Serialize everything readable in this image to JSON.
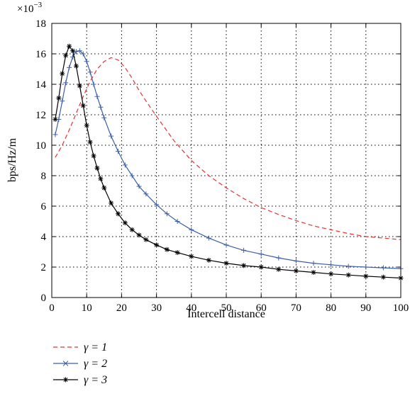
{
  "chart_data": {
    "type": "line",
    "xlabel": "Intercell distance",
    "ylabel": "bps/Hz/m",
    "y_multiplier_label": "×10",
    "y_multiplier_exponent": "−3",
    "xlim": [
      0,
      100
    ],
    "ylim": [
      0,
      18
    ],
    "x_ticks": [
      "0",
      "10",
      "20",
      "30",
      "40",
      "50",
      "60",
      "70",
      "80",
      "90",
      "100"
    ],
    "y_ticks": [
      "0",
      "2",
      "4",
      "6",
      "8",
      "10",
      "12",
      "14",
      "16",
      "18"
    ],
    "grid": true,
    "legend_position": "below",
    "series": [
      {
        "name": "γ = 1",
        "color": "#e8312f",
        "style": "dashed",
        "marker": "none",
        "x": [
          1,
          3,
          5,
          7,
          9,
          11,
          13,
          15,
          17,
          19,
          21,
          23,
          25,
          27,
          30,
          35,
          40,
          45,
          50,
          55,
          60,
          65,
          70,
          75,
          80,
          85,
          90,
          95,
          100
        ],
        "y": [
          9.2,
          10.0,
          11.0,
          12.1,
          13.2,
          14.2,
          15.0,
          15.5,
          15.75,
          15.6,
          15.1,
          14.4,
          13.6,
          12.9,
          11.9,
          10.3,
          9.0,
          8.0,
          7.2,
          6.5,
          5.9,
          5.45,
          5.05,
          4.7,
          4.45,
          4.2,
          4.0,
          3.9,
          3.8
        ]
      },
      {
        "name": "γ = 2",
        "color": "#3a5fa8",
        "style": "solid",
        "marker": "plus",
        "x": [
          1,
          2,
          3,
          4,
          5,
          6,
          7,
          8,
          9,
          10,
          11,
          12,
          13,
          14,
          15,
          17,
          19,
          21,
          23,
          25,
          27,
          30,
          33,
          36,
          40,
          45,
          50,
          55,
          60,
          65,
          70,
          75,
          80,
          85,
          90,
          95,
          100
        ],
        "y": [
          10.7,
          11.7,
          12.9,
          14.1,
          15.1,
          15.8,
          16.15,
          16.2,
          16.0,
          15.5,
          14.8,
          14.0,
          13.2,
          12.5,
          11.8,
          10.6,
          9.6,
          8.7,
          8.0,
          7.3,
          6.8,
          6.1,
          5.5,
          5.0,
          4.45,
          3.9,
          3.45,
          3.1,
          2.85,
          2.6,
          2.4,
          2.25,
          2.15,
          2.05,
          2.0,
          1.95,
          1.9
        ]
      },
      {
        "name": "γ = 3",
        "color": "#000000",
        "style": "solid",
        "marker": "star",
        "x": [
          1,
          2,
          3,
          4,
          5,
          6,
          7,
          8,
          9,
          10,
          11,
          12,
          13,
          14,
          15,
          17,
          19,
          21,
          23,
          25,
          27,
          30,
          33,
          36,
          40,
          45,
          50,
          55,
          60,
          65,
          70,
          75,
          80,
          85,
          90,
          95,
          100
        ],
        "y": [
          11.7,
          13.1,
          14.7,
          15.9,
          16.5,
          16.2,
          15.2,
          13.9,
          12.6,
          11.3,
          10.2,
          9.3,
          8.5,
          7.8,
          7.2,
          6.2,
          5.5,
          4.9,
          4.45,
          4.1,
          3.8,
          3.45,
          3.15,
          2.95,
          2.7,
          2.45,
          2.25,
          2.1,
          2.0,
          1.85,
          1.75,
          1.65,
          1.55,
          1.48,
          1.4,
          1.34,
          1.28
        ]
      }
    ]
  }
}
